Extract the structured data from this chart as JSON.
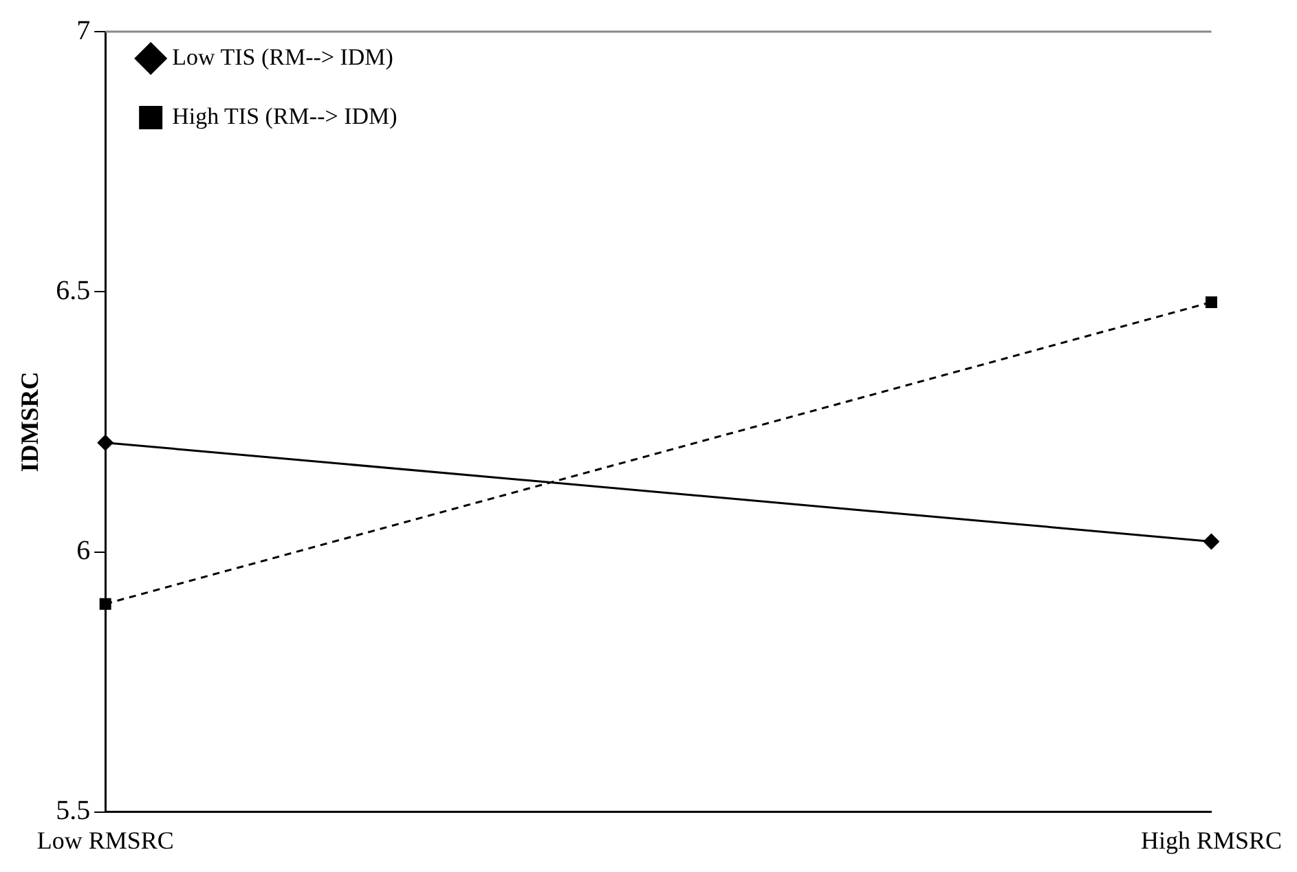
{
  "chart_data": {
    "type": "line",
    "ylabel": "IDMSRC",
    "categories": [
      "Low RMSRC",
      "High RMSRC"
    ],
    "series": [
      {
        "name": "Low TIS (RM--> IDM)",
        "color": "#000000",
        "values": [
          6.21,
          6.02
        ],
        "marker": "diamond",
        "line_style": "solid"
      },
      {
        "name": "High TIS (RM--> IDM)",
        "color": "#000000",
        "values": [
          5.9,
          6.48
        ],
        "marker": "square",
        "line_style": "dashed"
      }
    ],
    "ylim": [
      5.5,
      7
    ],
    "yticks": [
      5.5,
      6,
      6.5,
      7
    ],
    "grid": false,
    "legend": "top left"
  }
}
